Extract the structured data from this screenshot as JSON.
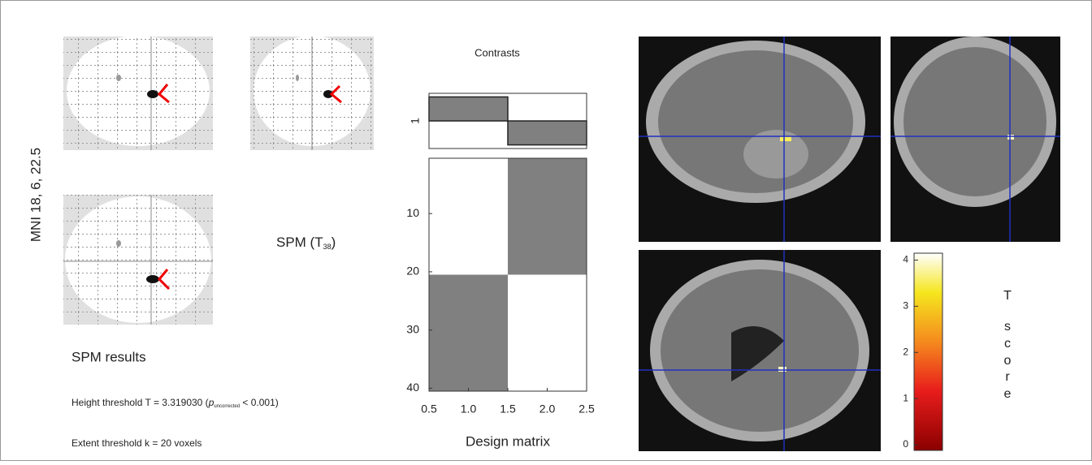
{
  "glass_brain": {
    "coordinates": "MNI 18, 6, 22.5",
    "stat_prefix": "SPM (T",
    "stat_df": "38",
    "stat_suffix": ")"
  },
  "results": {
    "title": "SPM results",
    "height_prefix": "Height threshold T = 3.319030 (",
    "height_p": "p",
    "height_p_sub": "uncorrected",
    "height_suffix": " < 0.001)",
    "extent": "Extent threshold k = 20 voxels"
  },
  "design_matrix": {
    "contrasts_title": "Contrasts",
    "xlabel": "Design matrix",
    "contrast_rows": [
      1
    ],
    "contrast_values": [
      1,
      -1
    ],
    "contrast_ylim": [
      -1.15,
      1.15
    ],
    "xlim": [
      0.5,
      2.5
    ],
    "xticks": [
      0.5,
      {
        "value": 1,
        "label": "1.0"
      },
      1.5,
      {
        "value": 2,
        "label": "2.0"
      },
      2.5
    ],
    "ylim": [
      0.5,
      40.5
    ],
    "yticks": [
      10,
      20,
      30,
      40
    ],
    "low_color": "#ffffff",
    "high_color": "#808080",
    "columns": [
      [
        0,
        0,
        0,
        0,
        0,
        0,
        0,
        0,
        0,
        0,
        0,
        0,
        0,
        0,
        0,
        0,
        0,
        0,
        0,
        0,
        1,
        1,
        1,
        1,
        1,
        1,
        1,
        1,
        1,
        1,
        1,
        1,
        1,
        1,
        1,
        1,
        1,
        1,
        1,
        1
      ],
      [
        1,
        1,
        1,
        1,
        1,
        1,
        1,
        1,
        1,
        1,
        1,
        1,
        1,
        1,
        1,
        1,
        1,
        1,
        1,
        1,
        0,
        0,
        0,
        0,
        0,
        0,
        0,
        0,
        0,
        0,
        0,
        0,
        0,
        0,
        0,
        0,
        0,
        0,
        0,
        0
      ]
    ]
  },
  "colorbar": {
    "ylim": [
      0,
      4.15
    ],
    "yticks": [
      0,
      1,
      2,
      3,
      4
    ],
    "label_letters": [
      "T",
      "s",
      "c",
      "o",
      "r",
      "e"
    ]
  }
}
